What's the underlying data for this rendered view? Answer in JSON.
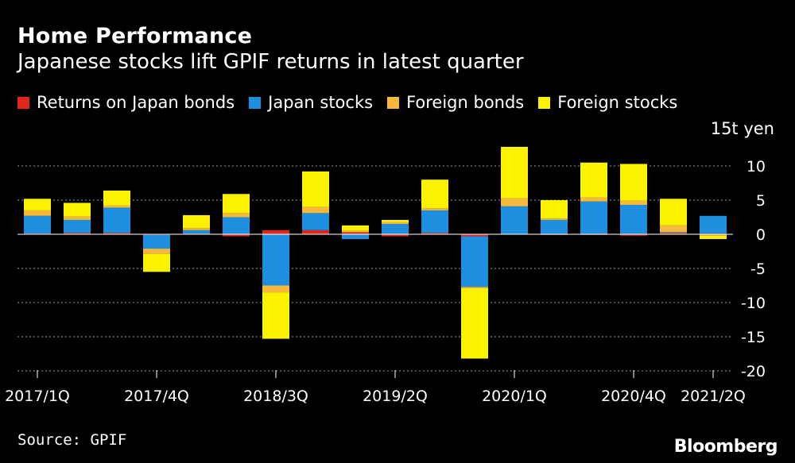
{
  "header": {
    "title": "Home Performance",
    "subtitle": "Japanese stocks lift GPIF returns in latest quarter"
  },
  "legend": [
    {
      "label": "Returns on Japan bonds",
      "color": "#e0251b"
    },
    {
      "label": "Japan stocks",
      "color": "#1e8fde"
    },
    {
      "label": "Foreign bonds",
      "color": "#f6b93b"
    },
    {
      "label": "Foreign stocks",
      "color": "#fbf200"
    }
  ],
  "footer": {
    "source": "Source: GPIF",
    "logo": "Bloomberg"
  },
  "chart_data": {
    "type": "bar",
    "stacked": true,
    "unit_label": "15t yen",
    "ylim": [
      -20,
      15
    ],
    "yticks": [
      10,
      5,
      0,
      -5,
      -10,
      -15,
      -20
    ],
    "grid": true,
    "legend_position": "top",
    "categories": [
      "2017/1Q",
      "2017/2Q",
      "2017/3Q",
      "2017/4Q",
      "2018/1Q",
      "2018/2Q",
      "2018/3Q",
      "2018/4Q",
      "2019/1Q",
      "2019/2Q",
      "2019/3Q",
      "2019/4Q",
      "2020/1Q",
      "2020/2Q",
      "2020/3Q",
      "2020/4Q",
      "2021/1Q",
      "2021/2Q"
    ],
    "x_tick_labels": [
      "2017/1Q",
      "",
      "",
      "2017/4Q",
      "",
      "",
      "2018/3Q",
      "",
      "",
      "2019/2Q",
      "",
      "",
      "2020/1Q",
      "",
      "",
      "2020/4Q",
      "",
      "2021/2Q"
    ],
    "series": [
      {
        "name": "Returns on Japan bonds",
        "color": "#e0251b",
        "values": [
          0.1,
          0.2,
          0.2,
          -0.1,
          0.1,
          -0.3,
          0.6,
          0.6,
          0.3,
          -0.3,
          0.2,
          -0.3,
          0.0,
          -0.1,
          -0.1,
          -0.2,
          0.2,
          0.1
        ]
      },
      {
        "name": "Japan stocks",
        "color": "#1e8fde",
        "values": [
          2.6,
          1.9,
          3.7,
          -2.0,
          0.5,
          2.5,
          -7.5,
          2.5,
          -0.7,
          1.5,
          3.3,
          -7.4,
          4.1,
          2.1,
          4.8,
          4.3,
          0.1,
          2.6
        ]
      },
      {
        "name": "Foreign bonds",
        "color": "#f6b93b",
        "values": [
          0.8,
          0.5,
          0.3,
          -0.8,
          0.3,
          0.6,
          -1.0,
          0.9,
          0.2,
          0.3,
          0.3,
          -0.2,
          1.2,
          0.2,
          0.6,
          0.6,
          1.0,
          -0.2
        ]
      },
      {
        "name": "Foreign stocks",
        "color": "#fbf200",
        "values": [
          1.7,
          2.0,
          2.2,
          -2.6,
          1.9,
          2.8,
          -6.8,
          5.2,
          0.8,
          0.3,
          4.2,
          -10.3,
          7.5,
          2.7,
          5.1,
          5.4,
          3.9,
          -0.5
        ]
      }
    ]
  }
}
